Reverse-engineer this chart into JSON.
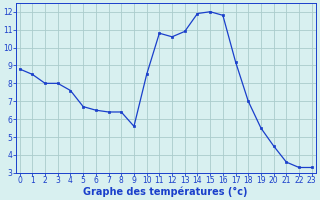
{
  "hours": [
    0,
    1,
    2,
    3,
    4,
    5,
    6,
    7,
    8,
    9,
    10,
    11,
    12,
    13,
    14,
    15,
    16,
    17,
    18,
    19,
    20,
    21,
    22,
    23
  ],
  "temps": [
    8.8,
    8.5,
    8.0,
    8.0,
    7.6,
    6.7,
    6.5,
    6.4,
    6.4,
    5.6,
    8.5,
    10.8,
    10.6,
    10.9,
    11.9,
    12.0,
    11.8,
    9.2,
    7.0,
    5.5,
    4.5,
    3.6,
    3.3,
    3.3
  ],
  "line_color": "#1a3fcb",
  "marker_color": "#1a3fcb",
  "bg_color": "#d8f0f0",
  "grid_color": "#aacccc",
  "xlabel": "Graphe des températures (°c)",
  "xlabel_color": "#1a3fcb",
  "xlabel_fontsize": 7,
  "tick_color": "#1a3fcb",
  "tick_fontsize": 5.5,
  "ylim": [
    3,
    12.5
  ],
  "xlim": [
    -0.3,
    23.3
  ],
  "yticks": [
    3,
    4,
    5,
    6,
    7,
    8,
    9,
    10,
    11,
    12
  ],
  "xticks": [
    0,
    1,
    2,
    3,
    4,
    5,
    6,
    7,
    8,
    9,
    10,
    11,
    12,
    13,
    14,
    15,
    16,
    17,
    18,
    19,
    20,
    21,
    22,
    23
  ]
}
